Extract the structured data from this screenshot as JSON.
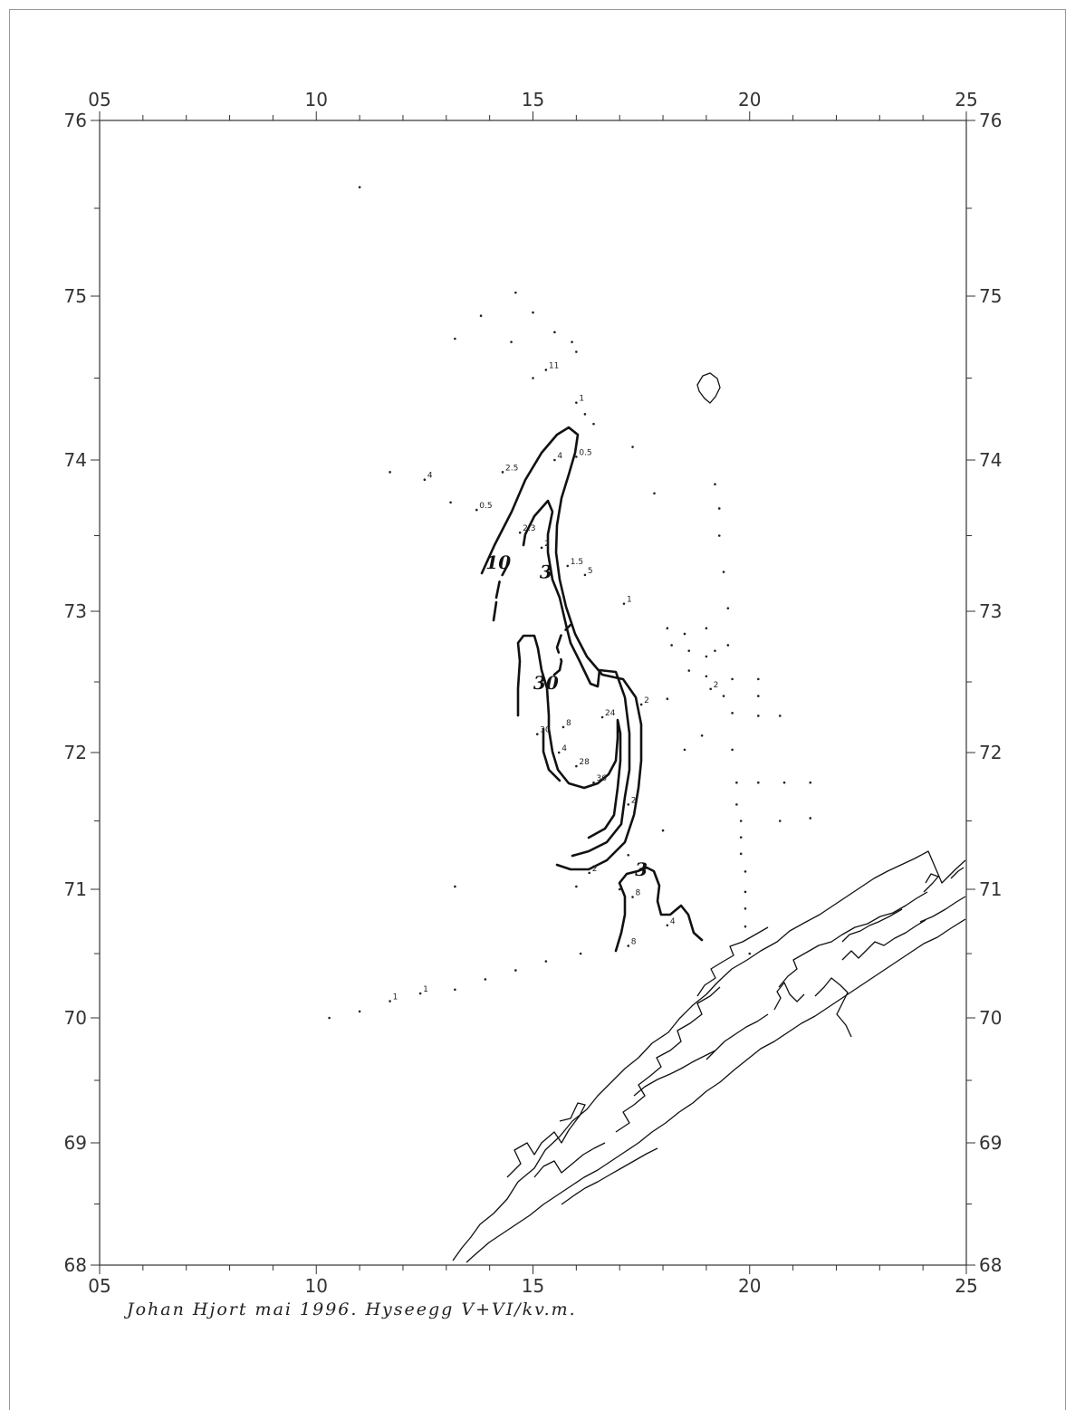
{
  "caption": "Johan Hjort mai 1996. Hyseegg V+VI/kv.m.",
  "axes": {
    "lon_ticks": [
      {
        "value": 5,
        "label": "05"
      },
      {
        "value": 10,
        "label": "10"
      },
      {
        "value": 15,
        "label": "15"
      },
      {
        "value": 20,
        "label": "20"
      },
      {
        "value": 25,
        "label": "25"
      }
    ],
    "lat_ticks": [
      {
        "value": 68,
        "label": "68"
      },
      {
        "value": 69,
        "label": "69"
      },
      {
        "value": 70,
        "label": "70"
      },
      {
        "value": 71,
        "label": "71"
      },
      {
        "value": 72,
        "label": "72"
      },
      {
        "value": 73,
        "label": "73"
      },
      {
        "value": 74,
        "label": "74"
      },
      {
        "value": 75,
        "label": "75"
      },
      {
        "value": 76,
        "label": "76"
      }
    ],
    "lon_range": [
      5,
      25
    ],
    "lat_range": [
      68,
      76
    ]
  },
  "isolines": [
    {
      "label": "10",
      "lon": 14.2,
      "lat": 73.28
    },
    {
      "label": "3",
      "lon": 15.3,
      "lat": 73.22
    },
    {
      "label": "30",
      "lon": 15.3,
      "lat": 72.45
    },
    {
      "label": "3",
      "lon": 17.5,
      "lat": 71.1
    }
  ],
  "stations": [
    {
      "lon": 14.6,
      "lat": 75.02,
      "label": ""
    },
    {
      "lon": 13.8,
      "lat": 74.88,
      "label": ""
    },
    {
      "lon": 15.0,
      "lat": 74.9,
      "label": ""
    },
    {
      "lon": 15.5,
      "lat": 74.78,
      "label": ""
    },
    {
      "lon": 15.9,
      "lat": 74.72,
      "label": ""
    },
    {
      "lon": 13.2,
      "lat": 74.74,
      "label": ""
    },
    {
      "lon": 14.5,
      "lat": 74.72,
      "label": ""
    },
    {
      "lon": 16.0,
      "lat": 74.66,
      "label": ""
    },
    {
      "lon": 15.3,
      "lat": 74.55,
      "label": "11"
    },
    {
      "lon": 15.0,
      "lat": 74.5,
      "label": ""
    },
    {
      "lon": 16.0,
      "lat": 74.35,
      "label": "1"
    },
    {
      "lon": 16.2,
      "lat": 74.28,
      "label": ""
    },
    {
      "lon": 16.4,
      "lat": 74.22,
      "label": ""
    },
    {
      "lon": 17.3,
      "lat": 74.08,
      "label": ""
    },
    {
      "lon": 14.3,
      "lat": 73.92,
      "label": "2.5"
    },
    {
      "lon": 15.5,
      "lat": 74.0,
      "label": "4"
    },
    {
      "lon": 16.0,
      "lat": 74.02,
      "label": "0.5"
    },
    {
      "lon": 11.7,
      "lat": 73.92,
      "label": ""
    },
    {
      "lon": 12.5,
      "lat": 73.87,
      "label": "4"
    },
    {
      "lon": 13.1,
      "lat": 73.72,
      "label": ""
    },
    {
      "lon": 13.7,
      "lat": 73.67,
      "label": "0.5"
    },
    {
      "lon": 17.8,
      "lat": 73.78,
      "label": ""
    },
    {
      "lon": 19.2,
      "lat": 73.84,
      "label": ""
    },
    {
      "lon": 19.3,
      "lat": 73.68,
      "label": ""
    },
    {
      "lon": 14.7,
      "lat": 73.52,
      "label": "2.3"
    },
    {
      "lon": 15.2,
      "lat": 73.42,
      "label": "2"
    },
    {
      "lon": 19.3,
      "lat": 73.5,
      "label": ""
    },
    {
      "lon": 15.8,
      "lat": 73.3,
      "label": "1.5"
    },
    {
      "lon": 16.2,
      "lat": 73.24,
      "label": "5"
    },
    {
      "lon": 19.4,
      "lat": 73.26,
      "label": ""
    },
    {
      "lon": 17.1,
      "lat": 73.05,
      "label": "1"
    },
    {
      "lon": 19.5,
      "lat": 73.02,
      "label": ""
    },
    {
      "lon": 18.1,
      "lat": 72.88,
      "label": ""
    },
    {
      "lon": 18.5,
      "lat": 72.84,
      "label": ""
    },
    {
      "lon": 19.0,
      "lat": 72.88,
      "label": ""
    },
    {
      "lon": 18.2,
      "lat": 72.76,
      "label": ""
    },
    {
      "lon": 18.6,
      "lat": 72.72,
      "label": ""
    },
    {
      "lon": 19.2,
      "lat": 72.72,
      "label": ""
    },
    {
      "lon": 19.5,
      "lat": 72.76,
      "label": ""
    },
    {
      "lon": 19.0,
      "lat": 72.68,
      "label": ""
    },
    {
      "lon": 18.6,
      "lat": 72.58,
      "label": ""
    },
    {
      "lon": 19.0,
      "lat": 72.54,
      "label": ""
    },
    {
      "lon": 19.6,
      "lat": 72.52,
      "label": ""
    },
    {
      "lon": 20.2,
      "lat": 72.52,
      "label": ""
    },
    {
      "lon": 19.1,
      "lat": 72.45,
      "label": "2"
    },
    {
      "lon": 18.1,
      "lat": 72.38,
      "label": ""
    },
    {
      "lon": 19.4,
      "lat": 72.4,
      "label": ""
    },
    {
      "lon": 20.2,
      "lat": 72.4,
      "label": ""
    },
    {
      "lon": 19.6,
      "lat": 72.28,
      "label": ""
    },
    {
      "lon": 20.2,
      "lat": 72.26,
      "label": ""
    },
    {
      "lon": 20.7,
      "lat": 72.26,
      "label": ""
    },
    {
      "lon": 17.5,
      "lat": 72.34,
      "label": "2"
    },
    {
      "lon": 16.6,
      "lat": 72.25,
      "label": "24"
    },
    {
      "lon": 15.7,
      "lat": 72.18,
      "label": "8"
    },
    {
      "lon": 15.1,
      "lat": 72.13,
      "label": "30"
    },
    {
      "lon": 18.9,
      "lat": 72.12,
      "label": ""
    },
    {
      "lon": 15.6,
      "lat": 72.0,
      "label": "4"
    },
    {
      "lon": 18.5,
      "lat": 72.02,
      "label": ""
    },
    {
      "lon": 19.6,
      "lat": 72.02,
      "label": ""
    },
    {
      "lon": 16.0,
      "lat": 71.9,
      "label": "28"
    },
    {
      "lon": 16.4,
      "lat": 71.78,
      "label": "36"
    },
    {
      "lon": 19.7,
      "lat": 71.78,
      "label": ""
    },
    {
      "lon": 20.2,
      "lat": 71.78,
      "label": ""
    },
    {
      "lon": 20.8,
      "lat": 71.78,
      "label": ""
    },
    {
      "lon": 21.4,
      "lat": 71.78,
      "label": ""
    },
    {
      "lon": 17.2,
      "lat": 71.62,
      "label": "2"
    },
    {
      "lon": 19.7,
      "lat": 71.62,
      "label": ""
    },
    {
      "lon": 19.8,
      "lat": 71.5,
      "label": ""
    },
    {
      "lon": 20.7,
      "lat": 71.5,
      "label": ""
    },
    {
      "lon": 21.4,
      "lat": 71.52,
      "label": ""
    },
    {
      "lon": 18.0,
      "lat": 71.43,
      "label": ""
    },
    {
      "lon": 19.8,
      "lat": 71.38,
      "label": ""
    },
    {
      "lon": 19.8,
      "lat": 71.26,
      "label": ""
    },
    {
      "lon": 16.3,
      "lat": 71.12,
      "label": "2"
    },
    {
      "lon": 17.2,
      "lat": 71.25,
      "label": ""
    },
    {
      "lon": 19.9,
      "lat": 71.13,
      "label": ""
    },
    {
      "lon": 13.2,
      "lat": 71.02,
      "label": ""
    },
    {
      "lon": 16.0,
      "lat": 71.02,
      "label": ""
    },
    {
      "lon": 17.0,
      "lat": 71.0,
      "label": ""
    },
    {
      "lon": 17.3,
      "lat": 70.94,
      "label": "8"
    },
    {
      "lon": 19.9,
      "lat": 70.98,
      "label": ""
    },
    {
      "lon": 19.9,
      "lat": 70.85,
      "label": ""
    },
    {
      "lon": 18.1,
      "lat": 70.72,
      "label": "4"
    },
    {
      "lon": 19.9,
      "lat": 70.71,
      "label": ""
    },
    {
      "lon": 17.2,
      "lat": 70.56,
      "label": "8"
    },
    {
      "lon": 16.1,
      "lat": 70.5,
      "label": ""
    },
    {
      "lon": 20.0,
      "lat": 70.5,
      "label": ""
    },
    {
      "lon": 15.3,
      "lat": 70.44,
      "label": ""
    },
    {
      "lon": 14.6,
      "lat": 70.37,
      "label": ""
    },
    {
      "lon": 13.9,
      "lat": 70.3,
      "label": ""
    },
    {
      "lon": 13.2,
      "lat": 70.22,
      "label": ""
    },
    {
      "lon": 12.4,
      "lat": 70.19,
      "label": "1"
    },
    {
      "lon": 11.7,
      "lat": 70.13,
      "label": "1"
    },
    {
      "lon": 11.0,
      "lat": 70.05,
      "label": ""
    },
    {
      "lon": 10.3,
      "lat": 70.0,
      "label": ""
    },
    {
      "lon": 11.0,
      "lat": 75.62,
      "label": ""
    }
  ]
}
